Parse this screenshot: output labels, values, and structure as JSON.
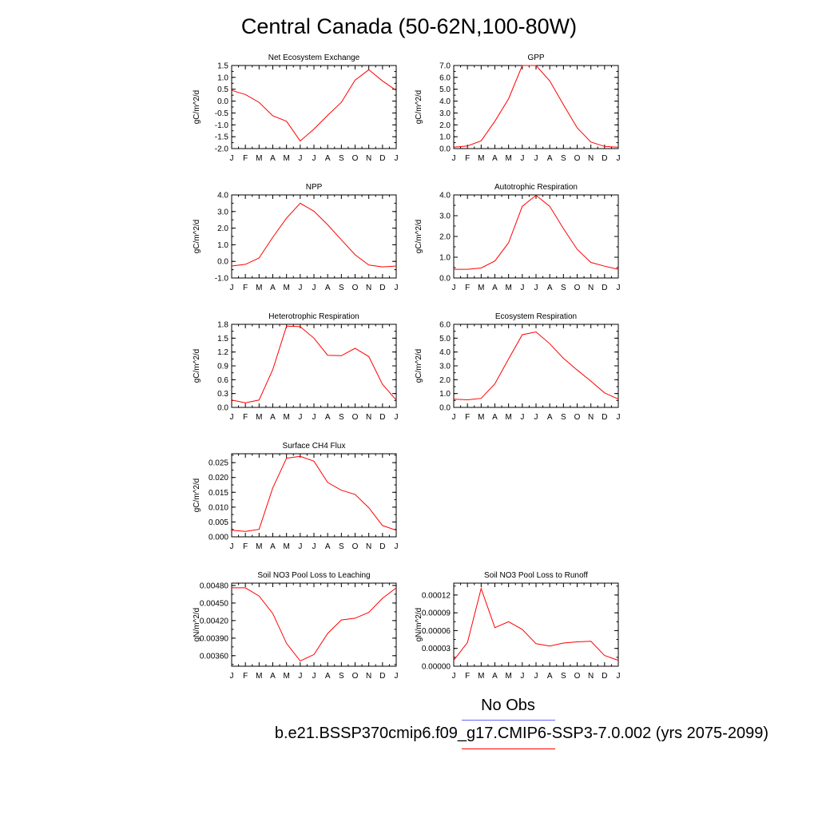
{
  "title": "Central Canada (50-62N,100-80W)",
  "legend": {
    "obs_label": "No Obs",
    "obs_color": "#6666ff",
    "run_label": "b.e21.BSSP370cmip6.f09_g17.CMIP6-SSP3-7.0.002 (yrs 2075-2099)",
    "run_color": "#ff0000"
  },
  "chart_data": [
    {
      "type": "line",
      "title": "Net Ecosystem Exchange",
      "ylabel": "gC/m^2/d",
      "x": [
        "J",
        "F",
        "M",
        "A",
        "M",
        "J",
        "J",
        "A",
        "S",
        "O",
        "N",
        "D",
        "J"
      ],
      "ylim": [
        -2.0,
        1.5
      ],
      "yticks": [
        1.5,
        1.0,
        0.5,
        0.0,
        -0.5,
        -1.0,
        -1.5,
        -2.0
      ],
      "ytick_labels": [
        "1.5",
        "1.0",
        "0.5",
        "0.0",
        "-0.5",
        "-1.0",
        "-1.5",
        "-2.0"
      ],
      "series": [
        {
          "color": "#ff0000",
          "values": [
            0.45,
            0.28,
            -0.05,
            -0.62,
            -0.85,
            -1.68,
            -1.18,
            -0.6,
            -0.05,
            0.88,
            1.32,
            0.85,
            0.45
          ]
        }
      ]
    },
    {
      "type": "line",
      "title": "GPP",
      "ylabel": "gC/m^2/d",
      "x": [
        "J",
        "F",
        "M",
        "A",
        "M",
        "J",
        "J",
        "A",
        "S",
        "O",
        "N",
        "D",
        "J"
      ],
      "ylim": [
        0.0,
        7.0
      ],
      "yticks": [
        7.0,
        6.0,
        5.0,
        4.0,
        3.0,
        2.0,
        1.0,
        0.0
      ],
      "ytick_labels": [
        "7.0",
        "6.0",
        "5.0",
        "4.0",
        "3.0",
        "2.0",
        "1.0",
        "0.0"
      ],
      "series": [
        {
          "color": "#ff0000",
          "values": [
            0.12,
            0.22,
            0.65,
            2.3,
            4.2,
            7.0,
            7.0,
            5.7,
            3.7,
            1.75,
            0.55,
            0.18,
            0.12
          ]
        }
      ]
    },
    {
      "type": "line",
      "title": "NPP",
      "ylabel": "gC/m^2/d",
      "x": [
        "J",
        "F",
        "M",
        "A",
        "M",
        "J",
        "J",
        "A",
        "S",
        "O",
        "N",
        "D",
        "J"
      ],
      "ylim": [
        -1.0,
        4.0
      ],
      "yticks": [
        4.0,
        3.0,
        2.0,
        1.0,
        0.0,
        -1.0
      ],
      "ytick_labels": [
        "4.0",
        "3.0",
        "2.0",
        "1.0",
        "0.0",
        "-1.0"
      ],
      "series": [
        {
          "color": "#ff0000",
          "values": [
            -0.28,
            -0.18,
            0.2,
            1.45,
            2.6,
            3.5,
            3.02,
            2.2,
            1.3,
            0.4,
            -0.22,
            -0.33,
            -0.28
          ]
        }
      ]
    },
    {
      "type": "line",
      "title": "Autotrophic Respiration",
      "ylabel": "gC/m^2/d",
      "x": [
        "J",
        "F",
        "M",
        "A",
        "M",
        "J",
        "J",
        "A",
        "S",
        "O",
        "N",
        "D",
        "J"
      ],
      "ylim": [
        0.0,
        4.0
      ],
      "yticks": [
        4.0,
        3.0,
        2.0,
        1.0,
        0.0
      ],
      "ytick_labels": [
        "4.0",
        "3.0",
        "2.0",
        "1.0",
        "0.0"
      ],
      "series": [
        {
          "color": "#ff0000",
          "values": [
            0.42,
            0.42,
            0.48,
            0.82,
            1.7,
            3.45,
            3.98,
            3.45,
            2.38,
            1.38,
            0.75,
            0.57,
            0.42
          ]
        }
      ]
    },
    {
      "type": "line",
      "title": "Heterotrophic Respiration",
      "ylabel": "gC/m^2/d",
      "x": [
        "J",
        "F",
        "M",
        "A",
        "M",
        "J",
        "J",
        "A",
        "S",
        "O",
        "N",
        "D",
        "J"
      ],
      "ylim": [
        0.0,
        1.8
      ],
      "yticks": [
        1.8,
        1.5,
        1.2,
        0.9,
        0.6,
        0.3,
        0.0
      ],
      "ytick_labels": [
        "1.8",
        "1.5",
        "1.2",
        "0.9",
        "0.6",
        "0.3",
        "0.0"
      ],
      "series": [
        {
          "color": "#ff0000",
          "values": [
            0.16,
            0.1,
            0.16,
            0.82,
            1.76,
            1.75,
            1.5,
            1.13,
            1.12,
            1.28,
            1.1,
            0.5,
            0.16
          ]
        }
      ]
    },
    {
      "type": "line",
      "title": "Ecosystem Respiration",
      "ylabel": "gC/m^2/d",
      "x": [
        "J",
        "F",
        "M",
        "A",
        "M",
        "J",
        "J",
        "A",
        "S",
        "O",
        "N",
        "D",
        "J"
      ],
      "ylim": [
        0.0,
        6.0
      ],
      "yticks": [
        6.0,
        5.0,
        4.0,
        3.0,
        2.0,
        1.0,
        0.0
      ],
      "ytick_labels": [
        "6.0",
        "5.0",
        "4.0",
        "3.0",
        "2.0",
        "1.0",
        "0.0"
      ],
      "series": [
        {
          "color": "#ff0000",
          "values": [
            0.6,
            0.55,
            0.65,
            1.7,
            3.5,
            5.25,
            5.45,
            4.6,
            3.55,
            2.7,
            1.9,
            1.05,
            0.6
          ]
        }
      ]
    },
    {
      "type": "line",
      "title": "Surface CH4 Flux",
      "ylabel": "gC/m^2/d",
      "x": [
        "J",
        "F",
        "M",
        "A",
        "M",
        "J",
        "J",
        "A",
        "S",
        "O",
        "N",
        "D",
        "J"
      ],
      "ylim": [
        0.0,
        0.028
      ],
      "yticks": [
        0.025,
        0.02,
        0.015,
        0.01,
        0.005,
        0.0
      ],
      "ytick_labels": [
        "0.025",
        "0.020",
        "0.015",
        "0.010",
        "0.005",
        "0.000"
      ],
      "series": [
        {
          "color": "#ff0000",
          "values": [
            0.0022,
            0.0018,
            0.0025,
            0.0165,
            0.0265,
            0.0271,
            0.0255,
            0.0183,
            0.0157,
            0.0143,
            0.0098,
            0.0038,
            0.0022
          ]
        }
      ]
    },
    {
      "type": "line",
      "title": "Soil NO3 Pool Loss to Leaching",
      "ylabel": "gN/m^2/d",
      "x": [
        "J",
        "F",
        "M",
        "A",
        "M",
        "J",
        "J",
        "A",
        "S",
        "O",
        "N",
        "D",
        "J"
      ],
      "ylim": [
        0.00342,
        0.00484
      ],
      "yticks": [
        0.0048,
        0.0045,
        0.0042,
        0.0039,
        0.0036
      ],
      "ytick_labels": [
        "0.00480",
        "0.00450",
        "0.00420",
        "0.00390",
        "0.00360"
      ],
      "series": [
        {
          "color": "#ff0000",
          "values": [
            0.00476,
            0.00476,
            0.00462,
            0.00432,
            0.00381,
            0.00351,
            0.00362,
            0.00398,
            0.00421,
            0.00424,
            0.00434,
            0.00458,
            0.00476
          ]
        }
      ]
    },
    {
      "type": "line",
      "title": "Soil NO3 Pool Loss to Runoff",
      "ylabel": "gN/m^2/d",
      "x": [
        "J",
        "F",
        "M",
        "A",
        "M",
        "J",
        "J",
        "A",
        "S",
        "O",
        "N",
        "D",
        "J"
      ],
      "ylim": [
        0.0,
        0.00014
      ],
      "yticks": [
        0.00012,
        9e-05,
        6e-05,
        3e-05,
        0.0
      ],
      "ytick_labels": [
        "0.00012",
        "0.00009",
        "0.00006",
        "0.00003",
        "0.00000"
      ],
      "series": [
        {
          "color": "#ff0000",
          "values": [
            1e-05,
            4e-05,
            0.000131,
            6.5e-05,
            7.5e-05,
            6.2e-05,
            3.8e-05,
            3.4e-05,
            3.9e-05,
            4.1e-05,
            4.2e-05,
            1.8e-05,
            1e-05
          ]
        }
      ]
    }
  ]
}
